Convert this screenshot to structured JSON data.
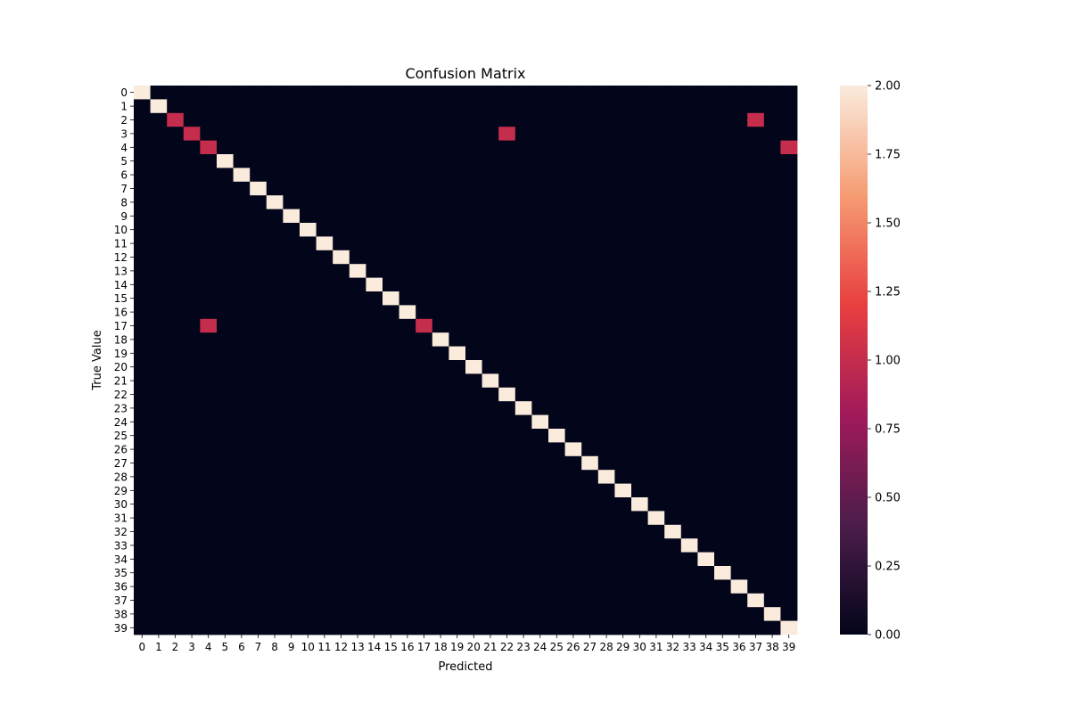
{
  "chart_data": {
    "type": "heatmap",
    "title": "Confusion Matrix",
    "xlabel": "Predicted",
    "ylabel": "True Value",
    "x_labels": [
      "0",
      "1",
      "2",
      "3",
      "4",
      "5",
      "6",
      "7",
      "8",
      "9",
      "10",
      "11",
      "12",
      "13",
      "14",
      "15",
      "16",
      "17",
      "18",
      "19",
      "20",
      "21",
      "22",
      "23",
      "24",
      "25",
      "26",
      "27",
      "28",
      "29",
      "30",
      "31",
      "32",
      "33",
      "34",
      "35",
      "36",
      "37",
      "38",
      "39"
    ],
    "y_labels": [
      "0",
      "1",
      "2",
      "3",
      "4",
      "5",
      "6",
      "7",
      "8",
      "9",
      "10",
      "11",
      "12",
      "13",
      "14",
      "15",
      "16",
      "17",
      "18",
      "19",
      "20",
      "21",
      "22",
      "23",
      "24",
      "25",
      "26",
      "27",
      "28",
      "29",
      "30",
      "31",
      "32",
      "33",
      "34",
      "35",
      "36",
      "37",
      "38",
      "39"
    ],
    "diagonal_default": 2,
    "cells": [
      {
        "row": 2,
        "col": 2,
        "value": 1
      },
      {
        "row": 2,
        "col": 37,
        "value": 1
      },
      {
        "row": 3,
        "col": 3,
        "value": 1
      },
      {
        "row": 3,
        "col": 22,
        "value": 1
      },
      {
        "row": 4,
        "col": 4,
        "value": 1
      },
      {
        "row": 4,
        "col": 39,
        "value": 1
      },
      {
        "row": 17,
        "col": 4,
        "value": 1
      },
      {
        "row": 17,
        "col": 17,
        "value": 1
      }
    ],
    "colorbar": {
      "vmin": 0,
      "vmax": 2,
      "ticks": [
        "0.00",
        "0.25",
        "0.50",
        "0.75",
        "1.00",
        "1.25",
        "1.50",
        "1.75",
        "2.00"
      ],
      "colors": [
        "#03051a",
        "#4c1d4b",
        "#a11a5b",
        "#e83f3f",
        "#f69c73",
        "#faebdd"
      ]
    }
  }
}
